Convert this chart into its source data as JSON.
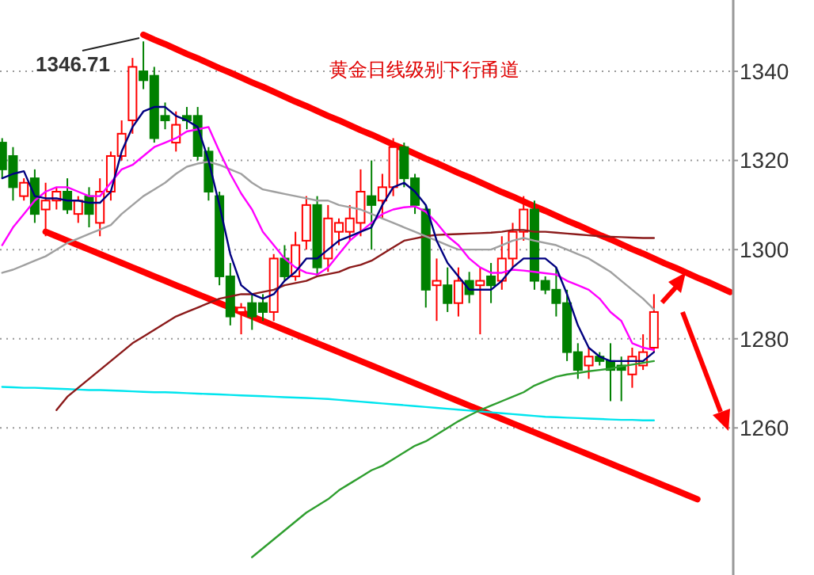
{
  "chart_data": {
    "type": "candlestick",
    "title": "黄金日线级别下行甬道",
    "categories": [
      null,
      null,
      null,
      null,
      null,
      null,
      null,
      null,
      null,
      null,
      null,
      null,
      null,
      null,
      null,
      null,
      null,
      null,
      null,
      null,
      null,
      null,
      null,
      null,
      null,
      null,
      null,
      null,
      null,
      null,
      null,
      null,
      null,
      null,
      null,
      null,
      null,
      null,
      null,
      null,
      null,
      null,
      null,
      null,
      null,
      null,
      null,
      null,
      null,
      null,
      null,
      null,
      null,
      null,
      null,
      null,
      null,
      null,
      null,
      null,
      null,
      null,
      null,
      null,
      null,
      null,
      null,
      null
    ],
    "ylim": [
      1227,
      1356
    ],
    "yticks": [
      1260,
      1280,
      1300,
      1320,
      1340
    ],
    "grid": "y",
    "tick_labels": "y",
    "annotations": [
      "1346.71"
    ],
    "series": [
      {
        "ohlc": [
          [
            1324,
            1325,
            1316,
            1318
          ],
          [
            1321,
            1323,
            1311,
            1314
          ],
          [
            1312,
            1316,
            1311,
            1315
          ],
          [
            1316,
            1318,
            1306,
            1308
          ],
          [
            1309,
            1315,
            1303,
            1311
          ],
          [
            1311,
            1314,
            1309,
            1313
          ],
          [
            1313,
            1316,
            1308,
            1309
          ],
          [
            1308,
            1312,
            1306,
            1311
          ],
          [
            1312,
            1314,
            1305,
            1308
          ],
          [
            1306,
            1316,
            1303,
            1313
          ],
          [
            1313,
            1322,
            1311,
            1321
          ],
          [
            1321,
            1329,
            1320,
            1326
          ],
          [
            1329,
            1343,
            1326,
            1341
          ],
          [
            1340,
            1346.71,
            1336,
            1338
          ],
          [
            1339,
            1341,
            1324,
            1325
          ],
          [
            1330,
            1333,
            1327,
            1329
          ],
          [
            1324,
            1331,
            1322,
            1328
          ],
          [
            1330,
            1332,
            1327,
            1329
          ],
          [
            1330,
            1332,
            1320,
            1321
          ],
          [
            1322,
            1323,
            1311,
            1313
          ],
          [
            1312,
            1313,
            1292,
            1294
          ],
          [
            1294,
            1297,
            1283,
            1285
          ],
          [
            1286,
            1288,
            1281,
            1287
          ],
          [
            1288,
            1290,
            1282,
            1285
          ],
          [
            1288,
            1290,
            1284,
            1286
          ],
          [
            1286,
            1299,
            1284,
            1298
          ],
          [
            1298,
            1301,
            1293,
            1294
          ],
          [
            1294,
            1304,
            1293,
            1301
          ],
          [
            1302,
            1312,
            1300,
            1310
          ],
          [
            1310,
            1312,
            1294,
            1296
          ],
          [
            1298,
            1310,
            1295,
            1307
          ],
          [
            1304,
            1307,
            1301,
            1306
          ],
          [
            1304,
            1310,
            1302,
            1307
          ],
          [
            1306,
            1318,
            1303,
            1313
          ],
          [
            1312,
            1320,
            1300,
            1310
          ],
          [
            1311,
            1317,
            1307,
            1314
          ],
          [
            1314,
            1325,
            1312,
            1323
          ],
          [
            1323,
            1324,
            1314,
            1316
          ],
          [
            1316,
            1317,
            1308,
            1310
          ],
          [
            1309,
            1310,
            1287,
            1291
          ],
          [
            1292,
            1298,
            1284,
            1293
          ],
          [
            1292,
            1296,
            1286,
            1288
          ],
          [
            1288,
            1296,
            1285,
            1293
          ],
          [
            1293,
            1295,
            1288,
            1290
          ],
          [
            1292,
            1296,
            1281,
            1293
          ],
          [
            1294,
            1297,
            1288,
            1292
          ],
          [
            1293,
            1303,
            1291,
            1298
          ],
          [
            1298,
            1306,
            1296,
            1304
          ],
          [
            1304,
            1312,
            1302,
            1309
          ],
          [
            1309,
            1311,
            1291,
            1293
          ],
          [
            1293,
            1294,
            1290,
            1291
          ],
          [
            1291,
            1296,
            1285,
            1288
          ],
          [
            1288,
            1291,
            1275,
            1277
          ],
          [
            1277,
            1279,
            1271,
            1273
          ],
          [
            1274,
            1278,
            1271,
            1276
          ],
          [
            1276,
            1277,
            1274,
            1275
          ],
          [
            1275,
            1279,
            1266,
            1273
          ],
          [
            1274,
            1276,
            1266,
            1273
          ],
          [
            1272,
            1278,
            1269,
            1276
          ],
          [
            1274,
            1281,
            1273,
            1277
          ],
          [
            1278,
            1290,
            1277,
            1286
          ],
          null,
          null,
          null,
          null,
          null,
          null,
          null
        ],
        "colors": [
          "#008000",
          "#008000",
          "#ff0000",
          "#008000",
          "#ff0000",
          "#ff0000",
          "#008000",
          "#ff0000",
          "#008000",
          "#ff0000",
          "#ff0000",
          "#ff0000",
          "#ff0000",
          "#008000",
          "#008000",
          "#008000",
          "#ff0000",
          "#008000",
          "#008000",
          "#008000",
          "#008000",
          "#008000",
          "#ff0000",
          "#008000",
          "#008000",
          "#ff0000",
          "#008000",
          "#ff0000",
          "#ff0000",
          "#008000",
          "#ff0000",
          "#ff0000",
          "#ff0000",
          "#ff0000",
          "#008000",
          "#ff0000",
          "#ff0000",
          "#008000",
          "#008000",
          "#008000",
          "#ff0000",
          "#008000",
          "#ff0000",
          "#008000",
          "#ff0000",
          "#008000",
          "#ff0000",
          "#ff0000",
          "#ff0000",
          "#008000",
          "#008000",
          "#008000",
          "#008000",
          "#008000",
          "#ff0000",
          "#008000",
          "#008000",
          "#008000",
          "#ff0000",
          "#ff0000",
          "#ff0000",
          null,
          null,
          null,
          null,
          null,
          null,
          null
        ]
      },
      {
        "type": "line",
        "color": "#00e5ee",
        "values": [
          1269.2,
          1269.1,
          1269,
          1269,
          1268.9,
          1268.8,
          1268.7,
          1268.6,
          1268.5,
          1268.5,
          1268.4,
          1268.3,
          1268.2,
          1268.1,
          1268,
          1268,
          1267.9,
          1267.8,
          1267.7,
          1267.6,
          1267.5,
          1267.4,
          1267.3,
          1267.2,
          1267.1,
          1267,
          1266.9,
          1266.8,
          1266.7,
          1266.6,
          1266.5,
          1266.3,
          1266.1,
          1265.9,
          1265.7,
          1265.5,
          1265.3,
          1265.1,
          1264.9,
          1264.7,
          1264.5,
          1264.3,
          1264.1,
          1263.9,
          1263.7,
          1263.5,
          1263.3,
          1263.1,
          1262.9,
          1262.7,
          1262.5,
          1262.4,
          1262.3,
          1262.2,
          1262.1,
          1262,
          1261.9,
          1261.8,
          1261.8,
          1261.7,
          1261.7,
          null,
          null,
          null,
          null,
          null,
          null,
          null
        ]
      },
      {
        "type": "line",
        "color": "#2e9e2e",
        "values": [
          null,
          null,
          null,
          null,
          null,
          null,
          null,
          null,
          null,
          null,
          null,
          null,
          null,
          null,
          null,
          null,
          null,
          null,
          null,
          null,
          null,
          null,
          null,
          1231,
          1233,
          1235,
          1237,
          1239,
          1241,
          1242.5,
          1244,
          1246,
          1247.5,
          1249,
          1250.5,
          1251.5,
          1253,
          1254.5,
          1256,
          1257,
          1258.5,
          1260,
          1261.5,
          1262.8,
          1264,
          1265,
          1266,
          1267,
          1268,
          1269.5,
          1270.5,
          1271.5,
          1272,
          1272.3,
          1272.7,
          1273,
          1273.3,
          1273.8,
          1274.2,
          1274.6,
          1275,
          null,
          null,
          null,
          null,
          null,
          null,
          null
        ]
      },
      {
        "type": "line",
        "color": "#8b1a1a",
        "values": [
          null,
          null,
          null,
          null,
          null,
          1264,
          1267,
          1269,
          1271,
          1273,
          1275,
          1277,
          1279,
          1280.5,
          1282,
          1283.5,
          1285,
          1286,
          1287,
          1288,
          1289,
          1289.5,
          1290,
          1290,
          1290.5,
          1291,
          1292,
          1292.5,
          1293,
          1294,
          1294.5,
          1295,
          1296,
          1296.6,
          1297.5,
          1299,
          1300.5,
          1302,
          1302.5,
          1303,
          1303.3,
          1303.4,
          1303.5,
          1303.6,
          1303.7,
          1303.8,
          1304,
          1304.4,
          1304.4,
          1304,
          1304,
          1303.8,
          1303.6,
          1303.4,
          1303.2,
          1303,
          1302.9,
          1302.8,
          1302.7,
          1302.6,
          1302.6,
          null,
          null,
          null,
          null,
          null,
          null,
          null
        ]
      },
      {
        "type": "line",
        "color": "#a0a0a0",
        "values": [
          1294.8,
          1295.5,
          1296.5,
          1297.5,
          1298.5,
          1300,
          1301.5,
          1302.5,
          1303.5,
          1304.5,
          1305.5,
          1308,
          1310,
          1312,
          1313.5,
          1315,
          1317,
          1318.6,
          1319.3,
          1319.7,
          1319,
          1318,
          1317,
          1315,
          1313.5,
          1313,
          1312.5,
          1312,
          1311.5,
          1311,
          1311,
          1310,
          1309.5,
          1309,
          1308,
          1307,
          1306,
          1305,
          1304,
          1303,
          1302,
          1301,
          1300,
          1300,
          1300,
          1300,
          1301,
          1302,
          1302.6,
          1302,
          1301.5,
          1301,
          1300,
          1299,
          1298,
          1296.5,
          1295,
          1293,
          1291,
          1289,
          1286.6,
          null,
          null,
          null,
          null,
          null,
          null,
          null
        ]
      },
      {
        "type": "line",
        "color": "#ff00ff",
        "values": [
          1301,
          1305,
          1308,
          1311,
          1313,
          1314,
          1314,
          1313,
          1312,
          1312,
          1315,
          1318,
          1319,
          1321,
          1323,
          1324,
          1325,
          1326.5,
          1327,
          1327.5,
          1322,
          1317,
          1312.6,
          1309,
          1304,
          1301,
          1298,
          1296,
          1294.8,
          1294.4,
          1296,
          1299,
          1302,
          1304,
          1306,
          1308,
          1309,
          1309.5,
          1309.7,
          1308.5,
          1306,
          1303,
          1301,
          1298,
          1296,
          1294.8,
          1294.8,
          1295.5,
          1295.3,
          1295,
          1294.7,
          1294.4,
          1293,
          1292,
          1291,
          1289,
          1286,
          1284,
          1279,
          1278,
          1277.5,
          null,
          null,
          null,
          null,
          null,
          null,
          null
        ]
      },
      {
        "type": "line",
        "color": "#000080",
        "values": [
          1316,
          1317,
          1317.6,
          1312,
          1311.5,
          1311.5,
          1311,
          1311,
          1310.5,
          1310.5,
          1313,
          1322,
          1327.5,
          1331,
          1332,
          1332,
          1330,
          1329,
          1327.5,
          1320,
          1310,
          1299,
          1292,
          1290,
          1289,
          1290,
          1293,
          1295,
          1298,
          1298,
          1300,
          1302,
          1303,
          1304,
          1305,
          1310,
          1314,
          1315,
          1313,
          1310,
          1302,
          1297,
          1294,
          1291,
          1291,
          1291,
          1293,
          1296,
          1298,
          1298,
          1298,
          1296,
          1290,
          1283,
          1278,
          1276,
          1275,
          1275,
          1275,
          1275,
          1277,
          null,
          null,
          null,
          null,
          null,
          null,
          null
        ]
      },
      {
        "type": "line",
        "color": "#ff0000",
        "values": [
          null,
          null,
          null,
          null,
          null,
          null,
          null,
          null,
          null,
          null,
          null,
          null,
          null,
          1348.2,
          1347.1,
          1346.1,
          1345.0,
          1343.9,
          1342.9,
          1341.8,
          1340.7,
          1339.7,
          1338.6,
          1337.5,
          1336.5,
          1335.4,
          1334.3,
          1333.2,
          1332.2,
          1331.1,
          1330.0,
          1329.0,
          1327.9,
          1326.8,
          1325.8,
          1324.7,
          1323.6,
          1322.6,
          1321.5,
          1320.4,
          1319.4,
          1318.3,
          1317.2,
          1316.2,
          1315.1,
          1314.0,
          1312.9,
          1311.9,
          1310.8,
          1309.7,
          1308.7,
          1307.6,
          1306.5,
          1305.5,
          1304.4,
          1303.3,
          1302.3,
          1301.2,
          1300.1,
          1299.1,
          1298.0,
          1296.9,
          1295.9,
          1294.8,
          1293.7,
          1292.7,
          1291.6,
          1290.5
        ]
      },
      {
        "type": "line",
        "color": "#ff0000",
        "values": [
          null,
          null,
          null,
          null,
          1304,
          1303,
          1302,
          1301,
          1300,
          1299,
          1298,
          1297,
          1296,
          1295,
          1294,
          1293,
          1292,
          1291,
          1290,
          1289,
          1288,
          1287,
          1286,
          1285,
          1284,
          1283,
          1282,
          1281,
          1280,
          1279,
          1278,
          1277,
          1276,
          1275,
          1274,
          1273,
          1272,
          1271,
          1270,
          1269,
          1268,
          1267,
          1266,
          1265,
          1264,
          1263,
          1262,
          1261,
          1260,
          1259,
          1258,
          1257,
          1256,
          1255,
          1254,
          1253,
          1252,
          1251,
          1250,
          1249,
          1248,
          1247,
          1246,
          1245,
          1244,
          null,
          null,
          null
        ]
      }
    ]
  }
}
